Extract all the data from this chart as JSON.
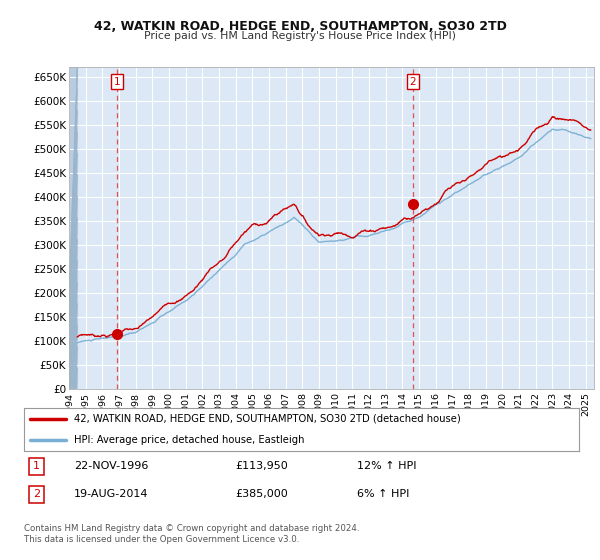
{
  "title": "42, WATKIN ROAD, HEDGE END, SOUTHAMPTON, SO30 2TD",
  "subtitle": "Price paid vs. HM Land Registry's House Price Index (HPI)",
  "legend_line1": "42, WATKIN ROAD, HEDGE END, SOUTHAMPTON, SO30 2TD (detached house)",
  "legend_line2": "HPI: Average price, detached house, Eastleigh",
  "footnote1": "Contains HM Land Registry data © Crown copyright and database right 2024.",
  "footnote2": "This data is licensed under the Open Government Licence v3.0.",
  "sale1_label": "1",
  "sale1_date": "22-NOV-1996",
  "sale1_price": "£113,950",
  "sale1_hpi": "12% ↑ HPI",
  "sale2_label": "2",
  "sale2_date": "19-AUG-2014",
  "sale2_price": "£385,000",
  "sale2_hpi": "6% ↑ HPI",
  "property_color": "#cc0000",
  "hpi_color": "#7aafd4",
  "sale1_x": 1996.9,
  "sale1_y": 113950,
  "sale2_x": 2014.63,
  "sale2_y": 385000,
  "vline1_x": 1996.9,
  "vline2_x": 2014.63,
  "ylim": [
    0,
    670000
  ],
  "xlim": [
    1994.0,
    2025.5
  ],
  "data_start_x": 1994.5,
  "yticks": [
    0,
    50000,
    100000,
    150000,
    200000,
    250000,
    300000,
    350000,
    400000,
    450000,
    500000,
    550000,
    600000,
    650000
  ],
  "ytick_labels": [
    "£0",
    "£50K",
    "£100K",
    "£150K",
    "£200K",
    "£250K",
    "£300K",
    "£350K",
    "£400K",
    "£450K",
    "£500K",
    "£550K",
    "£600K",
    "£650K"
  ],
  "xticks": [
    1994,
    1995,
    1996,
    1997,
    1998,
    1999,
    2000,
    2001,
    2002,
    2003,
    2004,
    2005,
    2006,
    2007,
    2008,
    2009,
    2010,
    2011,
    2012,
    2013,
    2014,
    2015,
    2016,
    2017,
    2018,
    2019,
    2020,
    2021,
    2022,
    2023,
    2024,
    2025
  ],
  "background_color": "#dce8f5",
  "hatch_color": "#b8cce0",
  "grid_color": "#ffffff",
  "plot_bg_color": "#dce8f5"
}
